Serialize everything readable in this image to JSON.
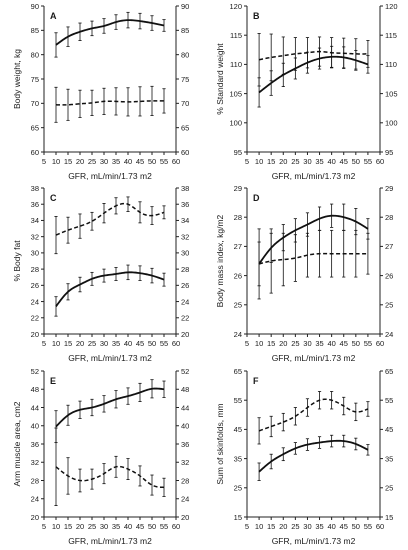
{
  "chart_data": [
    {
      "type": "line",
      "panel": "A",
      "ylabel_left": "Body weight, kg",
      "ylabel_right": "",
      "xlabel": "GFR, mL/min/1.73 m2",
      "xlim": [
        5,
        60
      ],
      "ylim": [
        60,
        90
      ],
      "left_yticks": [
        60,
        65,
        70,
        75,
        80,
        85,
        90
      ],
      "right_yticks": [
        60,
        65,
        70,
        75,
        80,
        85,
        90
      ],
      "x": [
        10,
        15,
        20,
        25,
        30,
        35,
        40,
        45,
        50,
        55
      ],
      "series": [
        {
          "style": "solid",
          "values": [
            82.0,
            83.7,
            84.7,
            85.4,
            85.9,
            86.7,
            87.1,
            86.9,
            86.5,
            86.0
          ],
          "errors": [
            2.5,
            2.0,
            1.8,
            1.5,
            1.5,
            1.5,
            1.6,
            1.6,
            1.5,
            1.2
          ]
        },
        {
          "style": "dashed",
          "values": [
            69.7,
            69.7,
            69.9,
            70.1,
            70.4,
            70.4,
            70.3,
            70.4,
            70.5,
            70.5
          ],
          "errors": [
            3.6,
            3.2,
            2.8,
            2.6,
            2.7,
            2.8,
            2.9,
            3.0,
            3.0,
            2.5
          ]
        }
      ]
    },
    {
      "type": "line",
      "panel": "B",
      "ylabel_left": "% Standard weight",
      "ylabel_right": "",
      "xlabel": "GFR, mL/min/1.73 m2",
      "xlim": [
        5,
        60
      ],
      "ylim": [
        95,
        120
      ],
      "left_yticks": [
        95,
        100,
        105,
        110,
        115,
        120
      ],
      "right_yticks": [
        95,
        100,
        105,
        110,
        115,
        120
      ],
      "x": [
        10,
        15,
        20,
        25,
        30,
        35,
        40,
        45,
        50,
        55
      ],
      "series": [
        {
          "style": "solid",
          "values": [
            105.2,
            106.8,
            108.2,
            109.3,
            110.3,
            111.0,
            111.3,
            111.2,
            110.7,
            110.0
          ],
          "errors": [
            2.5,
            2.1,
            2.0,
            1.8,
            1.8,
            1.8,
            1.8,
            1.8,
            1.7,
            1.5
          ]
        },
        {
          "style": "dashed",
          "values": [
            110.8,
            111.2,
            111.5,
            111.8,
            112.0,
            112.2,
            112.0,
            111.9,
            111.8,
            111.8
          ],
          "errors": [
            4.5,
            4.0,
            3.2,
            2.8,
            2.6,
            2.5,
            2.6,
            2.6,
            2.6,
            2.3
          ]
        }
      ]
    },
    {
      "type": "line",
      "panel": "C",
      "ylabel_left": "% Body fat",
      "ylabel_right": "",
      "xlabel": "GFR, mL/min/1.73 m2",
      "xlim": [
        5,
        60
      ],
      "ylim": [
        20,
        38
      ],
      "left_yticks": [
        20,
        22,
        24,
        26,
        28,
        30,
        32,
        34,
        36,
        38
      ],
      "right_yticks": [
        20,
        22,
        24,
        26,
        28,
        30,
        32,
        34,
        36,
        38
      ],
      "x": [
        10,
        15,
        20,
        25,
        30,
        35,
        40,
        45,
        50,
        55
      ],
      "series": [
        {
          "style": "solid",
          "values": [
            23.4,
            25.2,
            26.1,
            26.8,
            27.2,
            27.4,
            27.6,
            27.5,
            27.2,
            26.7
          ],
          "errors": [
            1.2,
            1.0,
            0.9,
            0.8,
            0.8,
            0.8,
            0.9,
            0.9,
            0.9,
            0.8
          ]
        },
        {
          "style": "dashed",
          "values": [
            32.2,
            32.8,
            33.3,
            33.9,
            34.9,
            35.8,
            36.0,
            35.0,
            34.6,
            35.0
          ],
          "errors": [
            2.3,
            1.6,
            1.5,
            1.1,
            1.2,
            1.0,
            0.9,
            1.3,
            1.1,
            0.8
          ]
        }
      ]
    },
    {
      "type": "line",
      "panel": "D",
      "ylabel_left": "Body mass index, kg/m2",
      "ylabel_right": "",
      "xlabel": "GFR, mL/min/1.73 m2",
      "xlim": [
        5,
        60
      ],
      "ylim": [
        24,
        29
      ],
      "left_yticks": [
        24,
        25,
        26,
        27,
        28,
        29
      ],
      "right_yticks": [
        24,
        25,
        26,
        27,
        28,
        29
      ],
      "x": [
        10,
        15,
        20,
        25,
        30,
        35,
        40,
        45,
        50,
        55
      ],
      "series": [
        {
          "style": "solid",
          "values": [
            26.4,
            26.95,
            27.3,
            27.55,
            27.75,
            27.95,
            28.05,
            28.0,
            27.85,
            27.6
          ],
          "errors": [
            0.75,
            0.5,
            0.45,
            0.4,
            0.4,
            0.4,
            0.4,
            0.45,
            0.45,
            0.35
          ]
        },
        {
          "style": "dashed",
          "values": [
            26.4,
            26.5,
            26.55,
            26.6,
            26.7,
            26.75,
            26.75,
            26.75,
            26.75,
            26.75
          ],
          "errors": [
            1.2,
            1.1,
            0.9,
            0.8,
            0.75,
            0.8,
            0.8,
            0.8,
            0.8,
            0.7
          ]
        }
      ]
    },
    {
      "type": "line",
      "panel": "E",
      "ylabel_left": "Arm muscle area, cm2",
      "ylabel_right": "",
      "xlabel": "GFR, mL/min/1.73 m2",
      "xlim": [
        5,
        60
      ],
      "ylim": [
        20,
        52
      ],
      "left_yticks": [
        20,
        24,
        28,
        32,
        36,
        40,
        44,
        48,
        52
      ],
      "right_yticks": [
        20,
        24,
        28,
        32,
        36,
        40,
        44,
        48,
        52
      ],
      "x": [
        10,
        15,
        20,
        25,
        30,
        35,
        40,
        45,
        50,
        55
      ],
      "series": [
        {
          "style": "solid",
          "values": [
            39.8,
            42.3,
            43.5,
            44.0,
            44.8,
            45.8,
            46.5,
            47.3,
            48.1,
            48.0
          ],
          "errors": [
            3.5,
            2.2,
            1.9,
            1.8,
            1.8,
            1.9,
            1.8,
            2.0,
            2.0,
            1.8
          ]
        },
        {
          "style": "dashed",
          "values": [
            31.0,
            29.0,
            28.0,
            28.3,
            29.5,
            31.0,
            30.5,
            29.0,
            27.0,
            26.5
          ],
          "errors": [
            8.5,
            4.0,
            2.5,
            2.2,
            2.2,
            2.3,
            2.3,
            2.2,
            2.2,
            2.0
          ]
        }
      ]
    },
    {
      "type": "line",
      "panel": "F",
      "ylabel_left": "Sum of skinfolds, mm",
      "ylabel_right": "",
      "xlabel": "GFR, mL/min/1.73 m2",
      "xlim": [
        5,
        60
      ],
      "ylim": [
        15,
        65
      ],
      "left_yticks": [
        15,
        25,
        35,
        45,
        55,
        65
      ],
      "right_yticks": [
        15,
        25,
        35,
        45,
        55,
        65
      ],
      "x": [
        10,
        15,
        20,
        25,
        30,
        35,
        40,
        45,
        50,
        55
      ],
      "series": [
        {
          "style": "solid",
          "values": [
            30.5,
            34.0,
            36.5,
            38.5,
            39.8,
            40.5,
            41.0,
            41.0,
            40.0,
            38.0
          ],
          "errors": [
            3.0,
            2.5,
            2.2,
            2.0,
            2.0,
            2.0,
            2.0,
            2.0,
            2.0,
            1.8
          ]
        },
        {
          "style": "dashed",
          "values": [
            44.5,
            46.0,
            47.5,
            49.5,
            52.5,
            55.0,
            55.0,
            53.0,
            51.0,
            52.0
          ],
          "errors": [
            4.5,
            3.5,
            3.0,
            3.0,
            3.0,
            3.0,
            3.0,
            3.0,
            3.0,
            2.5
          ]
        }
      ]
    }
  ],
  "xticks": [
    5,
    10,
    15,
    20,
    25,
    30,
    35,
    40,
    45,
    50,
    55,
    60
  ],
  "colors": {
    "line": "#111111",
    "axis": "#222222",
    "text": "#1a1a1a"
  }
}
